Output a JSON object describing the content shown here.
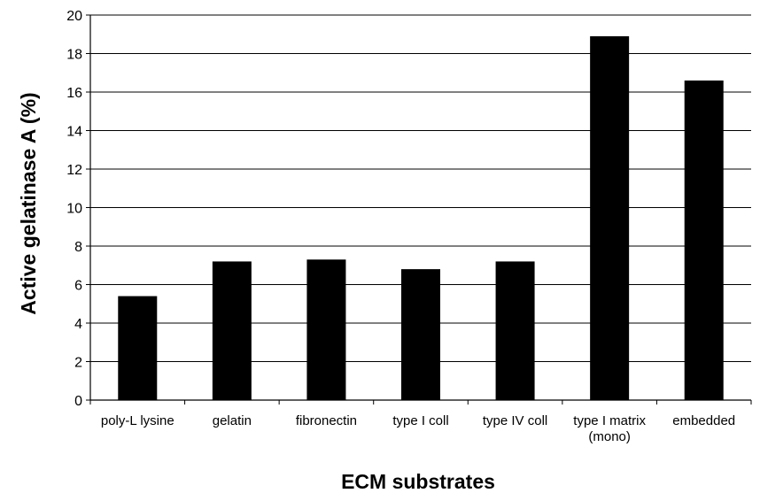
{
  "chart_data": {
    "type": "bar",
    "categories": [
      [
        "poly-L lysine"
      ],
      [
        "gelatin"
      ],
      [
        "fibronectin"
      ],
      [
        "type I coll"
      ],
      [
        "type IV coll"
      ],
      [
        "type I matrix",
        "(mono)"
      ],
      [
        "embedded"
      ]
    ],
    "values": [
      5.4,
      7.2,
      7.3,
      6.8,
      7.2,
      18.9,
      16.6
    ],
    "xlabel": "ECM substrates",
    "ylabel": "Active gelatinase A (%)",
    "ylim": [
      0,
      20
    ],
    "yticks": [
      0,
      2,
      4,
      6,
      8,
      10,
      12,
      14,
      16,
      18,
      20
    ],
    "grid": true,
    "legend": "none",
    "colors": {
      "bar": "#000000",
      "grid": "#000000",
      "background": "#ffffff"
    }
  }
}
